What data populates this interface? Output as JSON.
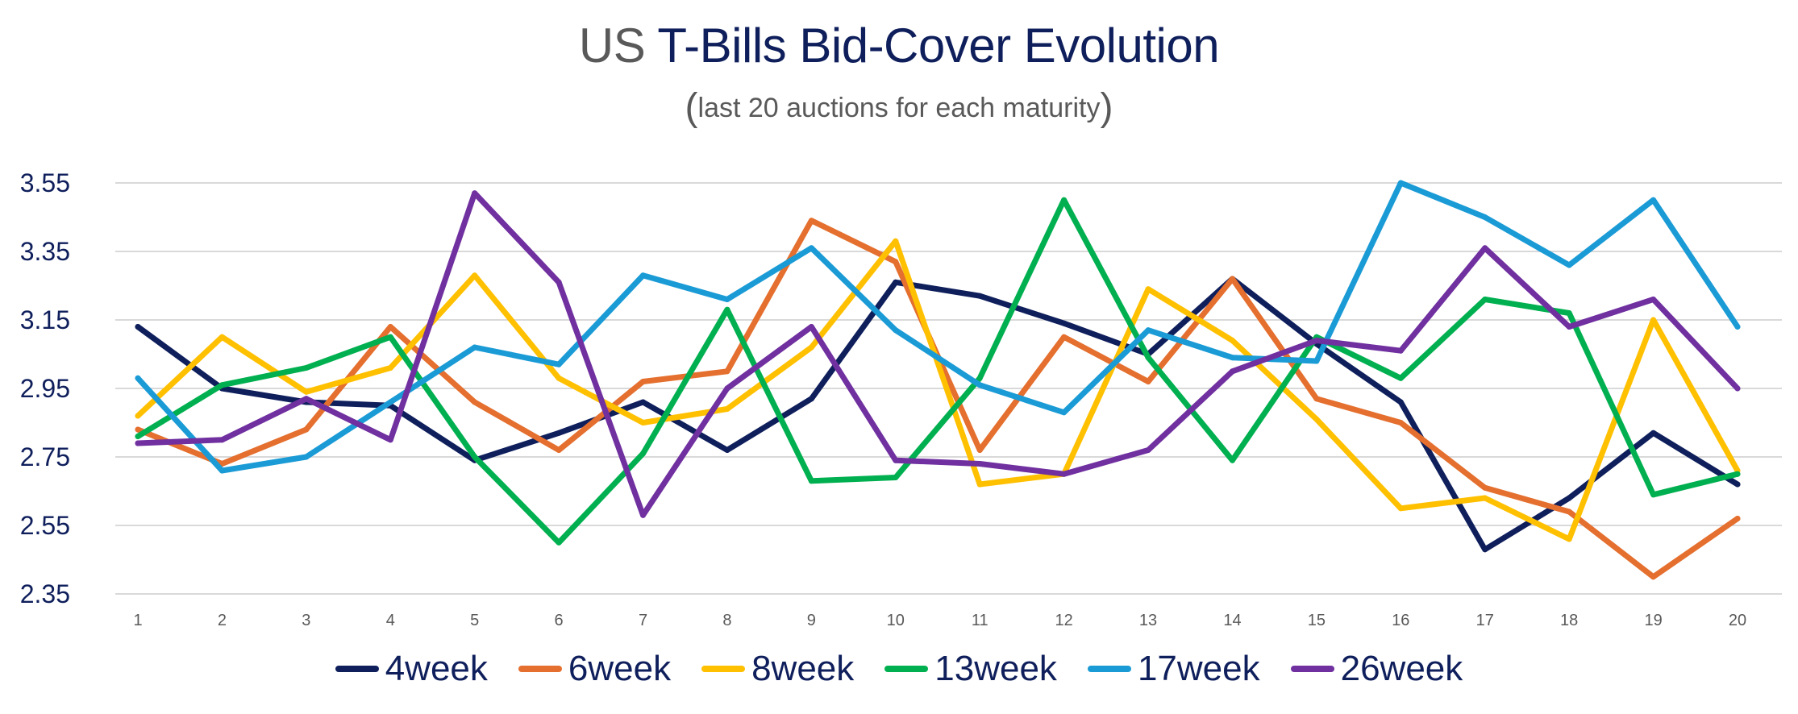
{
  "title_prefix": "US",
  "title_main": "T-Bills Bid-Cover Evolution",
  "subtitle_open": "(",
  "subtitle_text": "last 20 auctions for each maturity",
  "subtitle_close": ")",
  "chart_data": {
    "type": "line",
    "title": "US T-Bills Bid-Cover Evolution",
    "subtitle": "(last 20 auctions for each maturity)",
    "xlabel": "",
    "ylabel": "",
    "x": [
      1,
      2,
      3,
      4,
      5,
      6,
      7,
      8,
      9,
      10,
      11,
      12,
      13,
      14,
      15,
      16,
      17,
      18,
      19,
      20
    ],
    "yticks": [
      "3.55",
      "3.35",
      "3.15",
      "2.95",
      "2.75",
      "2.55",
      "2.35"
    ],
    "ylim": [
      2.35,
      3.55
    ],
    "grid": true,
    "legend_position": "bottom",
    "series": [
      {
        "name": "4week",
        "color": "#0f1f5c",
        "values": [
          3.13,
          2.95,
          2.91,
          2.9,
          2.74,
          2.82,
          2.91,
          2.77,
          2.92,
          3.26,
          3.22,
          3.14,
          3.05,
          3.27,
          3.08,
          2.91,
          2.48,
          2.63,
          2.82,
          2.67
        ]
      },
      {
        "name": "6week",
        "color": "#e46f2e",
        "values": [
          2.83,
          2.73,
          2.83,
          3.13,
          2.91,
          2.77,
          2.97,
          3.0,
          3.44,
          3.32,
          2.77,
          3.1,
          2.97,
          3.27,
          2.92,
          2.85,
          2.66,
          2.59,
          2.4,
          2.57
        ]
      },
      {
        "name": "8week",
        "color": "#ffc000",
        "values": [
          2.87,
          3.1,
          2.94,
          3.01,
          3.28,
          2.98,
          2.85,
          2.89,
          3.07,
          3.38,
          2.67,
          2.7,
          3.24,
          3.09,
          2.86,
          2.6,
          2.63,
          2.51,
          3.15,
          2.71
        ]
      },
      {
        "name": "13week",
        "color": "#00b050",
        "values": [
          2.81,
          2.96,
          3.01,
          3.1,
          2.75,
          2.5,
          2.76,
          3.18,
          2.68,
          2.69,
          2.98,
          3.5,
          3.04,
          2.74,
          3.1,
          2.98,
          3.21,
          3.17,
          2.64,
          2.7
        ]
      },
      {
        "name": "17week",
        "color": "#1a9bd6",
        "values": [
          2.98,
          2.71,
          2.75,
          2.91,
          3.07,
          3.02,
          3.28,
          3.21,
          3.36,
          3.12,
          2.96,
          2.88,
          3.12,
          3.04,
          3.03,
          3.55,
          3.45,
          3.31,
          3.5,
          3.13
        ]
      },
      {
        "name": "26week",
        "color": "#7030a0",
        "values": [
          2.79,
          2.8,
          2.92,
          2.8,
          3.52,
          3.26,
          2.58,
          2.95,
          3.13,
          2.74,
          2.73,
          2.7,
          2.77,
          3.0,
          3.09,
          3.06,
          3.36,
          3.13,
          3.21,
          2.95
        ]
      }
    ]
  }
}
